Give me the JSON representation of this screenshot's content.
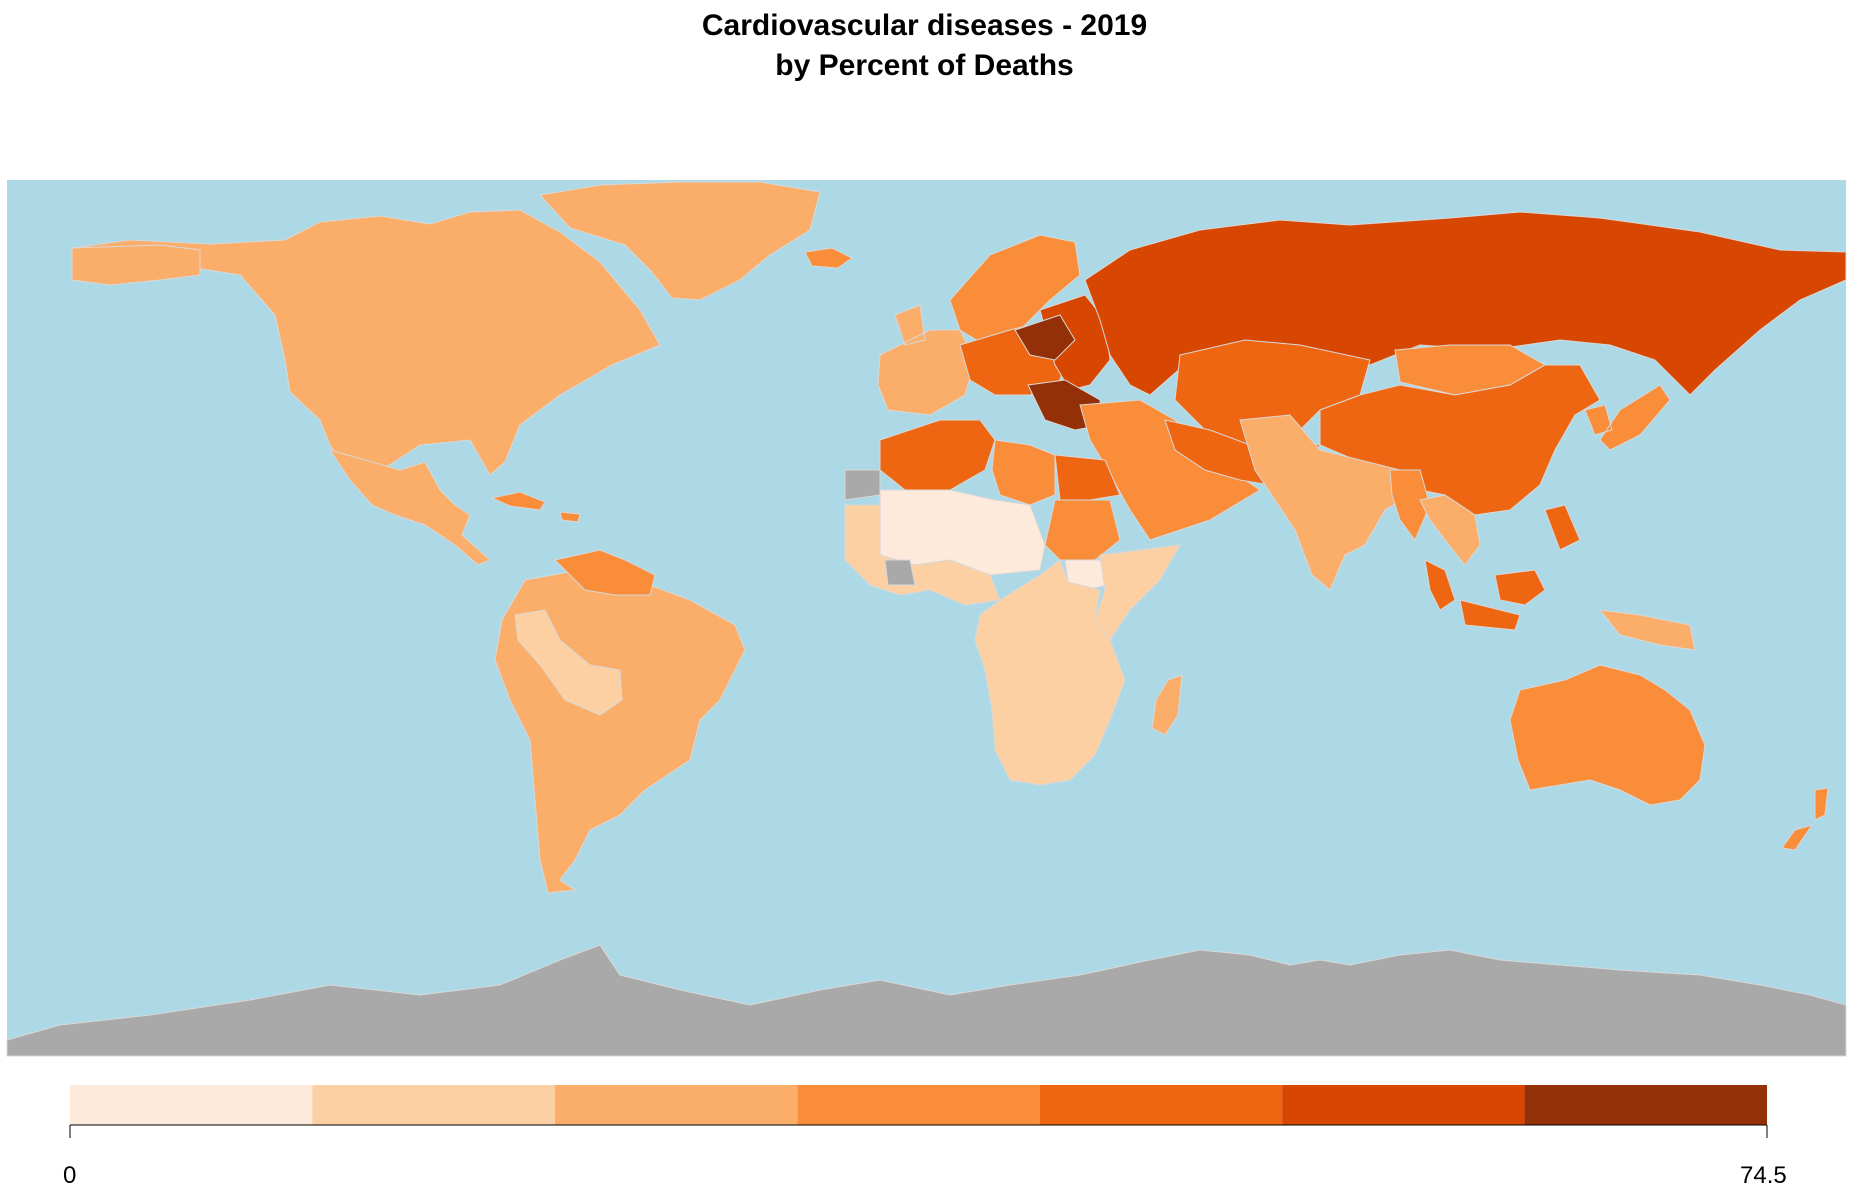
{
  "title": {
    "line1": "Cardiovascular diseases - 2019",
    "line2": "by Percent of Deaths"
  },
  "colors": {
    "ocean": "#add8e6",
    "no_data": "#a9a9a9",
    "border": "#d8d8d8",
    "bins": [
      "#feeadb",
      "#fcd0a2",
      "#faae6a",
      "#f98d3a",
      "#ef6612",
      "#d84702",
      "#933007"
    ]
  },
  "legend": {
    "min_label": "0",
    "max_label": "74.5",
    "min_value": 0,
    "max_value": 74.5,
    "bins": 7
  },
  "regions": [
    {
      "name": "canada-usa",
      "bin": 2
    },
    {
      "name": "alaska",
      "bin": 2
    },
    {
      "name": "greenland",
      "bin": 2
    },
    {
      "name": "mexico-central-america",
      "bin": 2
    },
    {
      "name": "caribbean",
      "bin": 3
    },
    {
      "name": "south-america",
      "bin": 2
    },
    {
      "name": "venezuela-guianas",
      "bin": 3
    },
    {
      "name": "peru-bolivia",
      "bin": 1
    },
    {
      "name": "iceland",
      "bin": 3
    },
    {
      "name": "western-europe",
      "bin": 2
    },
    {
      "name": "central-europe",
      "bin": 4
    },
    {
      "name": "scandinavia",
      "bin": 3
    },
    {
      "name": "eastern-europe",
      "bin": 5
    },
    {
      "name": "balkans",
      "bin": 6
    },
    {
      "name": "russia",
      "bin": 5
    },
    {
      "name": "kazakhstan-central-asia",
      "bin": 4
    },
    {
      "name": "china",
      "bin": 4
    },
    {
      "name": "mongolia",
      "bin": 3
    },
    {
      "name": "korea-japan",
      "bin": 3
    },
    {
      "name": "middle-east",
      "bin": 3
    },
    {
      "name": "iran-afghanistan-pakistan",
      "bin": 4
    },
    {
      "name": "india",
      "bin": 2
    },
    {
      "name": "southeast-asia",
      "bin": 2
    },
    {
      "name": "myanmar",
      "bin": 3
    },
    {
      "name": "indonesia-philippines",
      "bin": 4
    },
    {
      "name": "papua-new-guinea",
      "bin": 2
    },
    {
      "name": "australia",
      "bin": 3
    },
    {
      "name": "new-zealand",
      "bin": 3
    },
    {
      "name": "north-africa",
      "bin": 4
    },
    {
      "name": "libya",
      "bin": 3
    },
    {
      "name": "egypt",
      "bin": 4
    },
    {
      "name": "sudan",
      "bin": 3
    },
    {
      "name": "sahel",
      "bin": 0
    },
    {
      "name": "south-sudan",
      "bin": 0
    },
    {
      "name": "west-africa",
      "bin": 1
    },
    {
      "name": "central-southern-africa",
      "bin": 1
    },
    {
      "name": "east-africa",
      "bin": 1
    },
    {
      "name": "madagascar",
      "bin": 2
    },
    {
      "name": "western-sahara",
      "bin": "no_data"
    },
    {
      "name": "cote-divoire",
      "bin": "no_data"
    },
    {
      "name": "antarctica",
      "bin": "no_data"
    }
  ]
}
